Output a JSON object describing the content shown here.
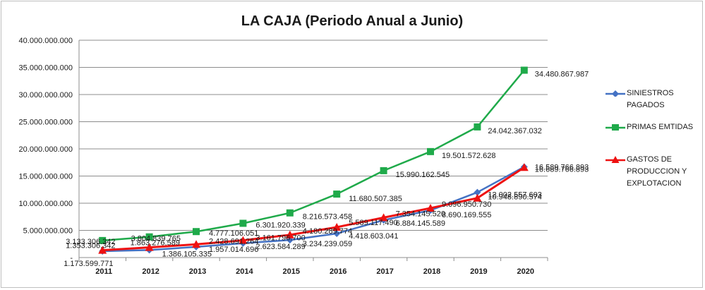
{
  "chart_data": {
    "type": "line",
    "title": "LA CAJA (Periodo Anual a Junio)",
    "categories": [
      "2011",
      "2012",
      "2013",
      "2014",
      "2015",
      "2016",
      "2017",
      "2018",
      "2019",
      "2020"
    ],
    "ylim": [
      0,
      40000000000
    ],
    "y_ticks": [
      "-",
      "5.000.000.000",
      "10.000.000.000",
      "15.000.000.000",
      "20.000.000.000",
      "25.000.000.000",
      "30.000.000.000",
      "35.000.000.000",
      "40.000.000.000"
    ],
    "grid": true,
    "legend_position": "right",
    "series": [
      {
        "name": "SINIESTROS PAGADOS",
        "color": "#4472c4",
        "marker": "diamond",
        "values": [
          1173599771,
          1386105335,
          1957014696,
          2623584289,
          3234239059,
          4418603041,
          6884145589,
          8690169555,
          12002557603,
          16689766893
        ],
        "labels": [
          "1.173.599.771",
          "1.386.105.335",
          "1.957.014.696",
          "2.623.584.289",
          "3.234.239.059",
          "4.418.603.041",
          "6.884.145.589",
          "8.690.169.555",
          "12.002.557.603",
          "16.689.766.893"
        ]
      },
      {
        "name": "PRIMAS EMTIDAS",
        "color": "#1faa4a",
        "marker": "square",
        "values": [
          3133306342,
          3804839765,
          4777106051,
          6301920339,
          8216573458,
          11680507385,
          15990162545,
          19501572628,
          24042367032,
          34480867987
        ],
        "labels": [
          "3.133.306.342",
          "3.804.839.765",
          "4.777.106.051",
          "6.301.920.339",
          "8.216.573.458",
          "11.680.507.385",
          "15.990.162.545",
          "19.501.572.628",
          "24.042.367.032",
          "34.480.867.987"
        ]
      },
      {
        "name": "GASTOS DE PRODUCCION Y EXPLOTACION",
        "color": "#ee1111",
        "marker": "triangle",
        "values": [
          1353306342,
          1863276589,
          2428691264,
          3161796700,
          4180289774,
          5589117490,
          7354145520,
          9096950730,
          10948890574,
          16589766893
        ],
        "labels": [
          "1.353.306.342",
          "1.863.276.589",
          "2.428.691.264",
          "3.161.796.700",
          "4.180.289.774",
          "5.589.117.490",
          "7.354.145.520",
          "9.096.950.730",
          "10.948.890.574",
          "16.589.766.893"
        ]
      }
    ]
  }
}
